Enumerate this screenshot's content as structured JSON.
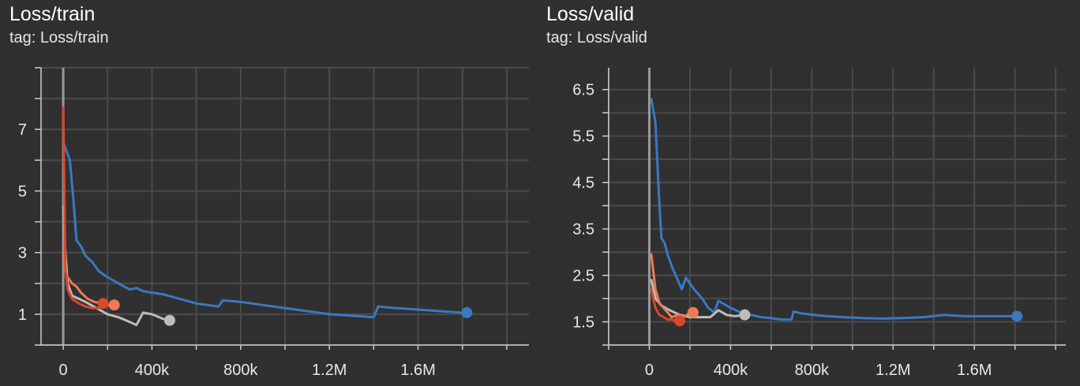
{
  "charts": [
    {
      "title": "Loss/train",
      "tag": "tag: Loss/train",
      "chart_data": {
        "type": "line",
        "title": "Loss/train",
        "subtitle": "tag: Loss/train",
        "xlabel": "",
        "ylabel": "",
        "xlim": [
          -100000,
          2100000
        ],
        "ylim": [
          0,
          9
        ],
        "x_ticks": [
          0,
          400000,
          800000,
          1200000,
          1600000
        ],
        "x_tick_labels": [
          "0",
          "400k",
          "800k",
          "1.2M",
          "1.6M"
        ],
        "y_ticks": [
          1,
          3,
          5,
          7
        ],
        "y_tick_labels": [
          "1",
          "3",
          "5",
          "7"
        ],
        "grid": true,
        "series": [
          {
            "color": "#3a78c3",
            "x": [
              0,
              15000,
              30000,
              45000,
              60000,
              80000,
              100000,
              130000,
              160000,
              200000,
              250000,
              300000,
              330000,
              360000,
              400000,
              450000,
              500000,
              550000,
              600000,
              650000,
              700000,
              720000,
              800000,
              900000,
              1000000,
              1100000,
              1200000,
              1300000,
              1400000,
              1420000,
              1500000,
              1600000,
              1700000,
              1800000,
              1820000
            ],
            "y": [
              6.6,
              6.3,
              6.0,
              4.8,
              3.4,
              3.2,
              2.9,
              2.7,
              2.4,
              2.2,
              2.0,
              1.8,
              1.85,
              1.75,
              1.7,
              1.65,
              1.55,
              1.45,
              1.35,
              1.3,
              1.25,
              1.45,
              1.4,
              1.3,
              1.2,
              1.1,
              1.0,
              0.95,
              0.9,
              1.25,
              1.2,
              1.15,
              1.1,
              1.05,
              1.05
            ]
          },
          {
            "color": "#bdbdbd",
            "x": [
              0,
              10000,
              20000,
              40000,
              70000,
              100000,
              150000,
              200000,
              250000,
              300000,
              330000,
              360000,
              400000,
              450000,
              480000
            ],
            "y": [
              4.5,
              3.0,
              2.0,
              1.6,
              1.5,
              1.4,
              1.2,
              1.0,
              0.9,
              0.75,
              0.65,
              1.05,
              1.0,
              0.85,
              0.8
            ]
          },
          {
            "color": "#ef7b53",
            "x": [
              0,
              10000,
              20000,
              40000,
              60000,
              80000,
              110000,
              140000,
              170000,
              200000,
              230000
            ],
            "y": [
              3.0,
              2.4,
              2.2,
              2.0,
              1.9,
              1.7,
              1.5,
              1.4,
              1.35,
              1.3,
              1.3
            ]
          },
          {
            "color": "#d9482b",
            "x": [
              0,
              5000,
              10000,
              20000,
              40000,
              70000,
              100000,
              130000,
              160000,
              180000
            ],
            "y": [
              7.7,
              5.0,
              2.5,
              1.8,
              1.5,
              1.35,
              1.25,
              1.2,
              1.2,
              1.35
            ]
          }
        ]
      }
    },
    {
      "title": "Loss/valid",
      "tag": "tag: Loss/valid",
      "chart_data": {
        "type": "line",
        "title": "Loss/valid",
        "subtitle": "tag: Loss/valid",
        "xlabel": "",
        "ylabel": "",
        "xlim": [
          -200000,
          2050000
        ],
        "ylim": [
          1.0,
          6.97
        ],
        "x_ticks": [
          0,
          400000,
          800000,
          1200000,
          1600000
        ],
        "x_tick_labels": [
          "0",
          "400k",
          "800k",
          "1.2M",
          "1.6M"
        ],
        "y_ticks": [
          1.5,
          2.5,
          3.5,
          4.5,
          5.5,
          6.5
        ],
        "y_tick_labels": [
          "1.5",
          "2.5",
          "3.5",
          "4.5",
          "5.5",
          "6.5"
        ],
        "grid": true,
        "series": [
          {
            "color": "#3a78c3",
            "x": [
              10000,
              30000,
              50000,
              60000,
              75000,
              90000,
              110000,
              140000,
              160000,
              180000,
              220000,
              260000,
              290000,
              320000,
              340000,
              360000,
              400000,
              450000,
              500000,
              550000,
              600000,
              650000,
              700000,
              710000,
              750000,
              850000,
              950000,
              1050000,
              1150000,
              1250000,
              1350000,
              1450000,
              1550000,
              1650000,
              1750000,
              1810000
            ],
            "y": [
              6.3,
              5.8,
              4.0,
              3.3,
              3.2,
              2.95,
              2.7,
              2.4,
              2.2,
              2.45,
              2.2,
              2.0,
              1.8,
              1.7,
              1.95,
              1.9,
              1.8,
              1.7,
              1.65,
              1.6,
              1.58,
              1.55,
              1.55,
              1.72,
              1.68,
              1.63,
              1.6,
              1.58,
              1.57,
              1.58,
              1.6,
              1.65,
              1.62,
              1.62,
              1.62,
              1.62
            ]
          },
          {
            "color": "#bdbdbd",
            "x": [
              10000,
              30000,
              60000,
              100000,
              150000,
              200000,
              250000,
              300000,
              340000,
              380000,
              420000,
              470000
            ],
            "y": [
              2.4,
              2.0,
              1.85,
              1.75,
              1.65,
              1.6,
              1.6,
              1.6,
              1.75,
              1.65,
              1.62,
              1.65
            ]
          },
          {
            "color": "#ef7b53",
            "x": [
              10000,
              30000,
              50000,
              80000,
              110000,
              140000,
              170000,
              200000,
              215000
            ],
            "y": [
              2.95,
              2.2,
              1.9,
              1.75,
              1.6,
              1.65,
              1.6,
              1.7,
              1.7
            ]
          },
          {
            "color": "#d9482b",
            "x": [
              10000,
              30000,
              50000,
              70000,
              90000,
              110000,
              130000,
              150000
            ],
            "y": [
              2.2,
              1.8,
              1.65,
              1.6,
              1.55,
              1.55,
              1.52,
              1.52
            ]
          }
        ]
      }
    }
  ]
}
